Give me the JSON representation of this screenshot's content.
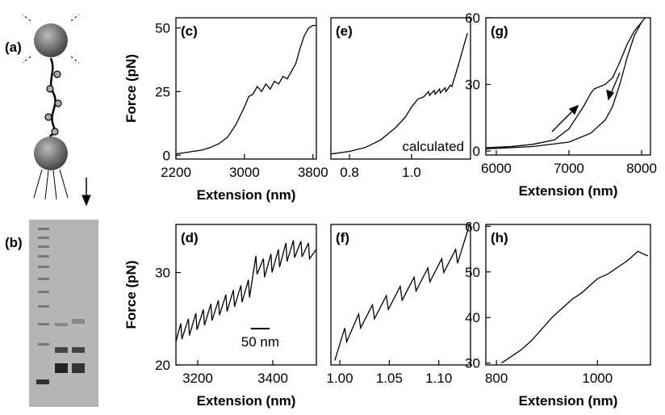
{
  "panels": {
    "a": "(a)",
    "b": "(b)"
  },
  "chart_data": [
    {
      "type": "line",
      "label": "(c)",
      "ylabel": "Force (pN)",
      "xlabel": "Extension (nm)",
      "xlim": [
        2200,
        3840
      ],
      "ylim": [
        -1.5,
        54
      ],
      "xticks": [
        2200,
        3000,
        3800
      ],
      "yticks": [
        0,
        25,
        50
      ],
      "series": [
        {
          "color": "#000000",
          "x": [
            2200,
            2300,
            2400,
            2500,
            2600,
            2700,
            2800,
            2900,
            3000,
            3050,
            3100,
            3150,
            3200,
            3250,
            3300,
            3350,
            3400,
            3450,
            3500,
            3550,
            3600,
            3650,
            3700,
            3750,
            3800,
            3840
          ],
          "values": [
            0.5,
            1,
            1.5,
            2,
            3,
            4.5,
            7,
            12,
            19,
            23,
            24,
            27,
            25,
            28,
            26,
            29,
            28,
            31,
            30,
            33,
            36,
            42,
            47,
            50,
            51,
            51
          ]
        }
      ]
    },
    {
      "type": "line",
      "label": "(e)",
      "annotation": "calculated",
      "xlim": [
        0.74,
        1.19
      ],
      "ylim": [
        -1.5,
        54
      ],
      "xticks": [
        0.8,
        {
          "value": 1,
          "label": "1.0"
        }
      ],
      "series": [
        {
          "color": "#000000",
          "x": [
            0.74,
            0.8,
            0.85,
            0.9,
            0.95,
            0.98,
            1.0,
            1.02,
            1.04,
            1.055,
            1.058,
            1.073,
            1.076,
            1.09,
            1.093,
            1.108,
            1.111,
            1.125,
            1.13,
            1.15,
            1.18
          ],
          "values": [
            0.5,
            1.5,
            3,
            6,
            11,
            15,
            19,
            22,
            23,
            25,
            23.5,
            25.5,
            24,
            26,
            24.5,
            26.5,
            25,
            27.5,
            27,
            35,
            48
          ]
        }
      ]
    },
    {
      "type": "line",
      "label": "(g)",
      "xlabel": "Extension (nm)",
      "xlim": [
        5856,
        8122
      ],
      "ylim": [
        -1.8,
        60
      ],
      "xticks": [
        6000,
        7000,
        8000
      ],
      "yticks": [
        0,
        30,
        60
      ],
      "series": [
        {
          "color": "#000000",
          "x": [
            5860,
            6200,
            6500,
            6800,
            7000,
            7100,
            7200,
            7300,
            7350,
            7500,
            7600,
            7700,
            7800,
            7900,
            8000,
            8050
          ],
          "values": [
            1.5,
            2,
            3,
            5,
            10,
            15,
            20,
            26,
            28,
            30,
            33,
            40,
            48,
            54,
            58,
            60
          ]
        },
        {
          "color": "#000000",
          "x": [
            5860,
            6500,
            7000,
            7300,
            7500,
            7600,
            7700,
            7800,
            7900,
            8000
          ],
          "values": [
            1,
            2,
            4,
            8,
            14,
            20,
            30,
            42,
            52,
            58
          ]
        }
      ]
    },
    {
      "type": "line",
      "label": "(d)",
      "ylabel": "Force (pN)",
      "xlabel": "Extension (nm)",
      "xlim": [
        3142,
        3516
      ],
      "ylim": [
        20,
        35.2
      ],
      "xticks": [
        3200,
        3400
      ],
      "yticks": [
        20,
        30
      ],
      "scale_bar": {
        "length": 50,
        "label": "50 nm"
      },
      "series": [
        {
          "color": "#000000",
          "x": [
            3142,
            3155,
            3158,
            3175,
            3178,
            3195,
            3198,
            3215,
            3218,
            3235,
            3238,
            3255,
            3258,
            3275,
            3278,
            3295,
            3298,
            3315,
            3318,
            3335,
            3338,
            3355,
            3358,
            3375,
            3378,
            3395,
            3398,
            3415,
            3418,
            3435,
            3438,
            3455,
            3458,
            3475,
            3478,
            3495,
            3498,
            3516
          ],
          "values": [
            22.5,
            24.5,
            22.8,
            25,
            23.2,
            25.6,
            23.8,
            26,
            24.3,
            26.6,
            24.8,
            27,
            25.4,
            27.6,
            25.8,
            28.1,
            26.3,
            28.6,
            26.8,
            29.2,
            27.3,
            31.8,
            29.8,
            31.5,
            29.5,
            32,
            30,
            32.5,
            30.6,
            33.2,
            31.2,
            33.5,
            31.6,
            33.4,
            31.7,
            33.2,
            31.5,
            32.5
          ]
        }
      ]
    },
    {
      "type": "line",
      "label": "(f)",
      "xlim": [
        0.991,
        1.132
      ],
      "ylim": [
        20,
        35.2
      ],
      "xticks": [
        {
          "value": 1,
          "label": "1.00"
        },
        1.05,
        {
          "value": 1.1,
          "label": "1.10"
        }
      ],
      "series": [
        {
          "color": "#000000",
          "x": [
            0.995,
            1.005,
            1.007,
            1.019,
            1.021,
            1.033,
            1.035,
            1.047,
            1.049,
            1.061,
            1.063,
            1.075,
            1.077,
            1.089,
            1.091,
            1.103,
            1.105,
            1.117,
            1.119,
            1.131
          ],
          "values": [
            20.5,
            24,
            22.5,
            25.5,
            24,
            26.5,
            25,
            27.5,
            26,
            28.5,
            27,
            29.5,
            28,
            30.5,
            29,
            31.5,
            30,
            32.5,
            31,
            35.2
          ]
        }
      ]
    },
    {
      "type": "line",
      "label": "(h)",
      "xlabel": "Extension (nm)",
      "xlim": [
        779,
        1105
      ],
      "ylim": [
        29.6,
        60.4
      ],
      "xticks": [
        800,
        1000
      ],
      "yticks": [
        30,
        40,
        50,
        60
      ],
      "series": [
        {
          "color": "#000000",
          "x": [
            810,
            830,
            850,
            870,
            890,
            910,
            930,
            950,
            970,
            990,
            1000,
            1020,
            1040,
            1060,
            1080,
            1090,
            1100
          ],
          "values": [
            30,
            31.5,
            33,
            35,
            37.5,
            40,
            42,
            44,
            45.5,
            47.5,
            48.5,
            49.5,
            51,
            52.5,
            54.5,
            54,
            53.5
          ]
        }
      ]
    }
  ]
}
